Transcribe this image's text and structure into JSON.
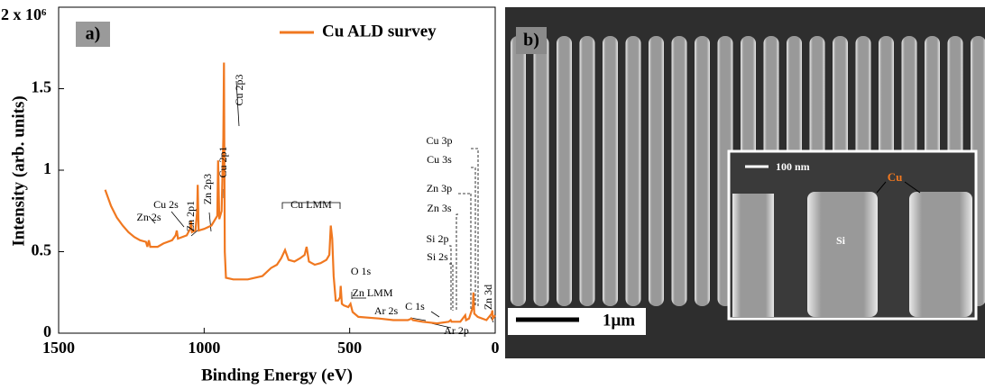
{
  "chart_data": {
    "type": "line",
    "panel_label": "a)",
    "xlabel": "Binding Energy (eV)",
    "ylabel": "Intensity (arb. units)",
    "xlim": [
      1500,
      0
    ],
    "xticks": [
      1500,
      1000,
      500,
      0
    ],
    "ylim": [
      0,
      2
    ],
    "yticks": [
      0,
      0.5,
      1,
      1.5,
      {
        "value": 2,
        "label": "2 x 10⁶"
      }
    ],
    "legend": "upper right",
    "series": [
      {
        "name": "Cu ALD survey",
        "color": "#f07820",
        "x": [
          1340,
          1320,
          1300,
          1280,
          1260,
          1240,
          1220,
          1200,
          1195,
          1190,
          1185,
          1160,
          1140,
          1110,
          1098,
          1094,
          1090,
          1060,
          1048,
          1045,
          1042,
          1030,
          1024,
          1022,
          1019,
          1000,
          975,
          955,
          952,
          948,
          940,
          934,
          932,
          929,
          925,
          900,
          850,
          800,
          770,
          750,
          735,
          722,
          710,
          690,
          670,
          655,
          648,
          640,
          620,
          600,
          580,
          570,
          565,
          560,
          555,
          548,
          540,
          533,
          531,
          527,
          520,
          505,
          497,
          490,
          470,
          400,
          350,
          300,
          287,
          283,
          250,
          200,
          160,
          153,
          150,
          120,
          103,
          100,
          90,
          77,
          75,
          72,
          60,
          30,
          12,
          10,
          8,
          0
        ],
        "values": [
          0.88,
          0.78,
          0.71,
          0.66,
          0.62,
          0.59,
          0.57,
          0.56,
          0.53,
          0.57,
          0.53,
          0.53,
          0.55,
          0.57,
          0.6,
          0.63,
          0.58,
          0.6,
          0.64,
          0.69,
          0.62,
          0.63,
          0.75,
          0.91,
          0.63,
          0.64,
          0.66,
          0.72,
          1.06,
          0.7,
          0.75,
          1.2,
          1.66,
          0.5,
          0.34,
          0.33,
          0.33,
          0.35,
          0.4,
          0.42,
          0.46,
          0.51,
          0.45,
          0.44,
          0.46,
          0.48,
          0.53,
          0.44,
          0.42,
          0.43,
          0.45,
          0.48,
          0.66,
          0.58,
          0.35,
          0.2,
          0.2,
          0.22,
          0.29,
          0.18,
          0.17,
          0.16,
          0.18,
          0.13,
          0.1,
          0.09,
          0.08,
          0.08,
          0.09,
          0.08,
          0.07,
          0.06,
          0.07,
          0.08,
          0.07,
          0.07,
          0.11,
          0.08,
          0.09,
          0.16,
          0.25,
          0.12,
          0.1,
          0.08,
          0.12,
          0.14,
          0.09,
          0.11
        ]
      }
    ],
    "annotations": [
      "Zn 2s",
      "Cu 2s",
      "Zn 2p1",
      "Zn 2p3",
      "Cu 2p1",
      "Cu 2p3",
      "Cu LMM",
      "O 1s",
      "Zn LMM",
      "Ar 2s",
      "C 1s",
      "Ar 2p",
      "Cu 3p",
      "Cu 3s",
      "Zn 3p",
      "Zn 3s",
      "Si 2p",
      "Si 2s",
      "Zn 3d"
    ]
  },
  "sem_image": {
    "panel_label": "b)",
    "scale_bar": "1μm",
    "inset_scale_bar": "100 nm",
    "labels": [
      "Cu",
      "Si"
    ]
  }
}
